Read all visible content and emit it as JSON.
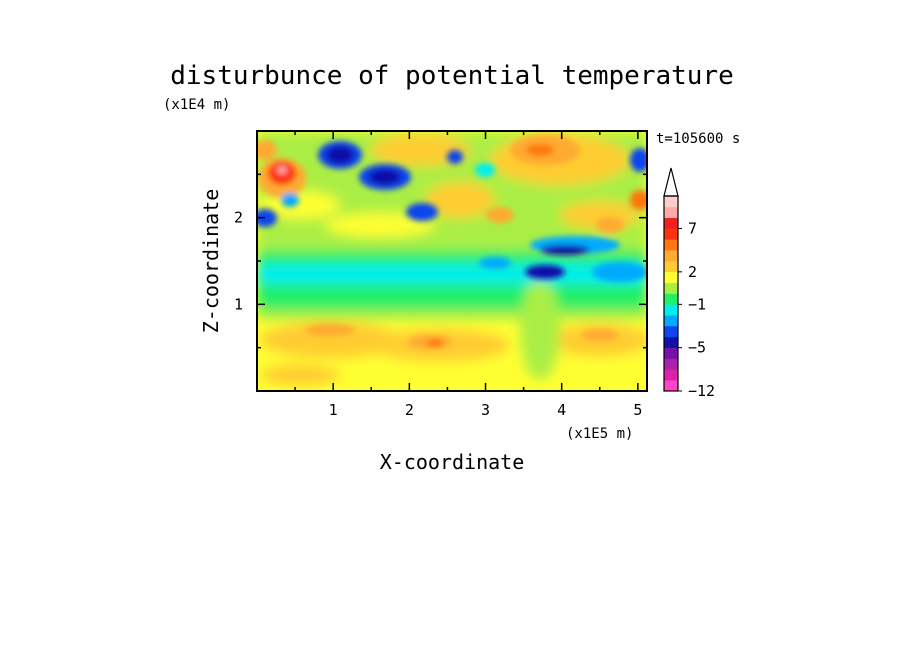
{
  "chart_data": {
    "type": "heatmap",
    "title": "disturbunce of potential temperature",
    "xlabel": "X-coordinate",
    "ylabel": "Z-coordinate",
    "x_unit": "(x1E5 m)",
    "y_unit": "(x1E4 m)",
    "time_label": "t=105600 s",
    "xlim": [
      0,
      5.12
    ],
    "ylim": [
      0,
      3.0
    ],
    "x_ticks": [
      "1",
      "2",
      "3",
      "4",
      "5"
    ],
    "y_ticks": [
      "1",
      "2"
    ],
    "x_tick_values": [
      1,
      2,
      3,
      4,
      5
    ],
    "y_tick_values": [
      1,
      2
    ],
    "colorbar": {
      "colors": [
        "#ff44c8",
        "#dd22aa",
        "#aa22aa",
        "#7711aa",
        "#1111aa",
        "#1144ee",
        "#00aaff",
        "#00eeee",
        "#22ee66",
        "#aaee44",
        "#ffff33",
        "#ffcc33",
        "#ffaa33",
        "#ff7711",
        "#ff3311",
        "#ee2222",
        "#ffaaaa",
        "#ffcccc"
      ],
      "labels": [
        "-12",
        "-5",
        "-1",
        "2",
        "7"
      ],
      "label_levels": [
        0,
        4,
        8,
        11,
        15
      ],
      "extend": "max"
    }
  }
}
